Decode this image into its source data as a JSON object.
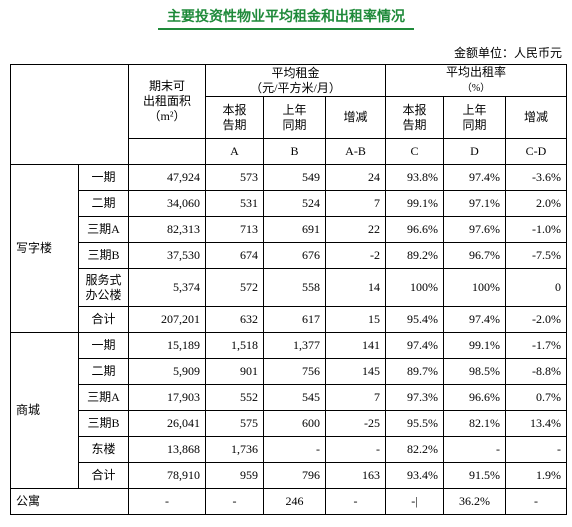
{
  "title": "主要投资性物业平均租金和出租率情况",
  "unit": "金额单位：人民币元",
  "table": {
    "header": {
      "area": "期末可\n出租面积\n（m²）",
      "rent": "平均租金",
      "rent_unit": "（元/平方米/月）",
      "occupancy": "平均出租率",
      "occupancy_unit": "（%）",
      "sub": [
        "本报\n告期",
        "上年\n同期",
        "增减",
        "本报\n告期",
        "上年\n同期",
        "增减"
      ],
      "letters": [
        "A",
        "B",
        "A-B",
        "C",
        "D",
        "C-D"
      ]
    },
    "groups": [
      {
        "name": "写字楼",
        "rows": [
          {
            "label": "一期",
            "cells": [
              "47,924",
              "573",
              "549",
              "24",
              "93.8%",
              "97.4%",
              "-3.6%"
            ]
          },
          {
            "label": "二期",
            "cells": [
              "34,060",
              "531",
              "524",
              "7",
              "99.1%",
              "97.1%",
              "2.0%"
            ]
          },
          {
            "label": "三期A",
            "cells": [
              "82,313",
              "713",
              "691",
              "22",
              "96.6%",
              "97.6%",
              "-1.0%"
            ]
          },
          {
            "label": "三期B",
            "cells": [
              "37,530",
              "674",
              "676",
              "-2",
              "89.2%",
              "96.7%",
              "-7.5%"
            ]
          },
          {
            "label": "服务式\n办公楼",
            "cells": [
              "5,374",
              "572",
              "558",
              "14",
              "100%",
              "100%",
              "0"
            ]
          },
          {
            "label": "合计",
            "cells": [
              "207,201",
              "632",
              "617",
              "15",
              "95.4%",
              "97.4%",
              "-2.0%"
            ]
          }
        ]
      },
      {
        "name": "商城",
        "rows": [
          {
            "label": "一期",
            "cells": [
              "15,189",
              "1,518",
              "1,377",
              "141",
              "97.4%",
              "99.1%",
              "-1.7%"
            ]
          },
          {
            "label": "二期",
            "cells": [
              "5,909",
              "901",
              "756",
              "145",
              "89.7%",
              "98.5%",
              "-8.8%"
            ]
          },
          {
            "label": "三期A",
            "cells": [
              "17,903",
              "552",
              "545",
              "7",
              "97.3%",
              "96.6%",
              "0.7%"
            ]
          },
          {
            "label": "三期B",
            "cells": [
              "26,041",
              "575",
              "600",
              "-25",
              "95.5%",
              "82.1%",
              "13.4%"
            ]
          },
          {
            "label": "东楼",
            "cells": [
              "13,868",
              "1,736",
              "-",
              "-",
              "82.2%",
              "-",
              "-"
            ]
          },
          {
            "label": "合计",
            "cells": [
              "78,910",
              "959",
              "796",
              "163",
              "93.4%",
              "91.5%",
              "1.9%"
            ]
          }
        ]
      }
    ],
    "apartment": {
      "label": "公寓",
      "cells": [
        "-",
        "-",
        "246",
        "-",
        "-|",
        "36.2%",
        "-"
      ]
    }
  }
}
